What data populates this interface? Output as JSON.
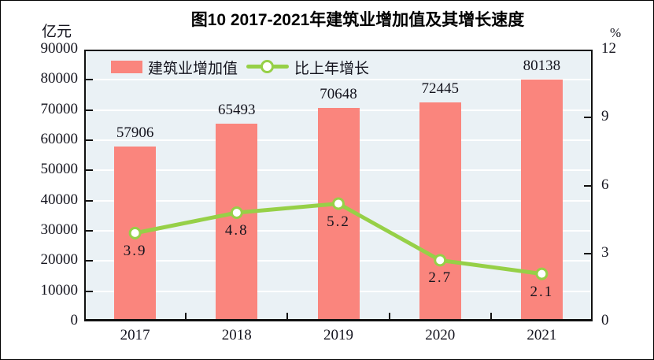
{
  "header": {
    "title": "图10  2017-2021年建筑业增加值及其增长速度",
    "left_unit": "亿元",
    "right_unit": "%"
  },
  "legend": {
    "bar": {
      "label": "建筑业增加值"
    },
    "line": {
      "label": "比上年增长"
    }
  },
  "colors": {
    "bar": "#fa857d",
    "line": "#96d047",
    "marker_fill": "#ffffff",
    "plot_bg": "#eaf1f5",
    "gridline": "#ffffff",
    "axis": "#111111",
    "text": "#14141e"
  },
  "chart_data": {
    "type": "bar",
    "title": "图10  2017-2021年建筑业增加值及其增长速度",
    "categories": [
      "2017",
      "2018",
      "2019",
      "2020",
      "2021"
    ],
    "series": [
      {
        "name": "建筑业增加值",
        "type": "bar",
        "axis": "left",
        "unit": "亿元",
        "values": [
          57906,
          65493,
          70648,
          72445,
          80138
        ],
        "labels": [
          "57906",
          "65493",
          "70648",
          "72445",
          "80138"
        ],
        "color": "#fa857d"
      },
      {
        "name": "比上年增长",
        "type": "line",
        "axis": "right",
        "unit": "%",
        "values": [
          3.9,
          4.8,
          5.2,
          2.7,
          2.1
        ],
        "labels": [
          "3.9",
          "4.8",
          "5.2",
          "2.7",
          "2.1"
        ],
        "color": "#96d047"
      }
    ],
    "left_axis": {
      "label": "亿元",
      "min": 0,
      "max": 90000,
      "step": 10000,
      "ticks": [
        "0",
        "10000",
        "20000",
        "30000",
        "40000",
        "50000",
        "60000",
        "70000",
        "80000",
        "90000"
      ]
    },
    "right_axis": {
      "label": "%",
      "min": 0,
      "max": 12,
      "step": 3,
      "ticks": [
        "0",
        "3",
        "6",
        "9",
        "12"
      ]
    },
    "grid": true,
    "legend_position": "top-left-inside"
  }
}
